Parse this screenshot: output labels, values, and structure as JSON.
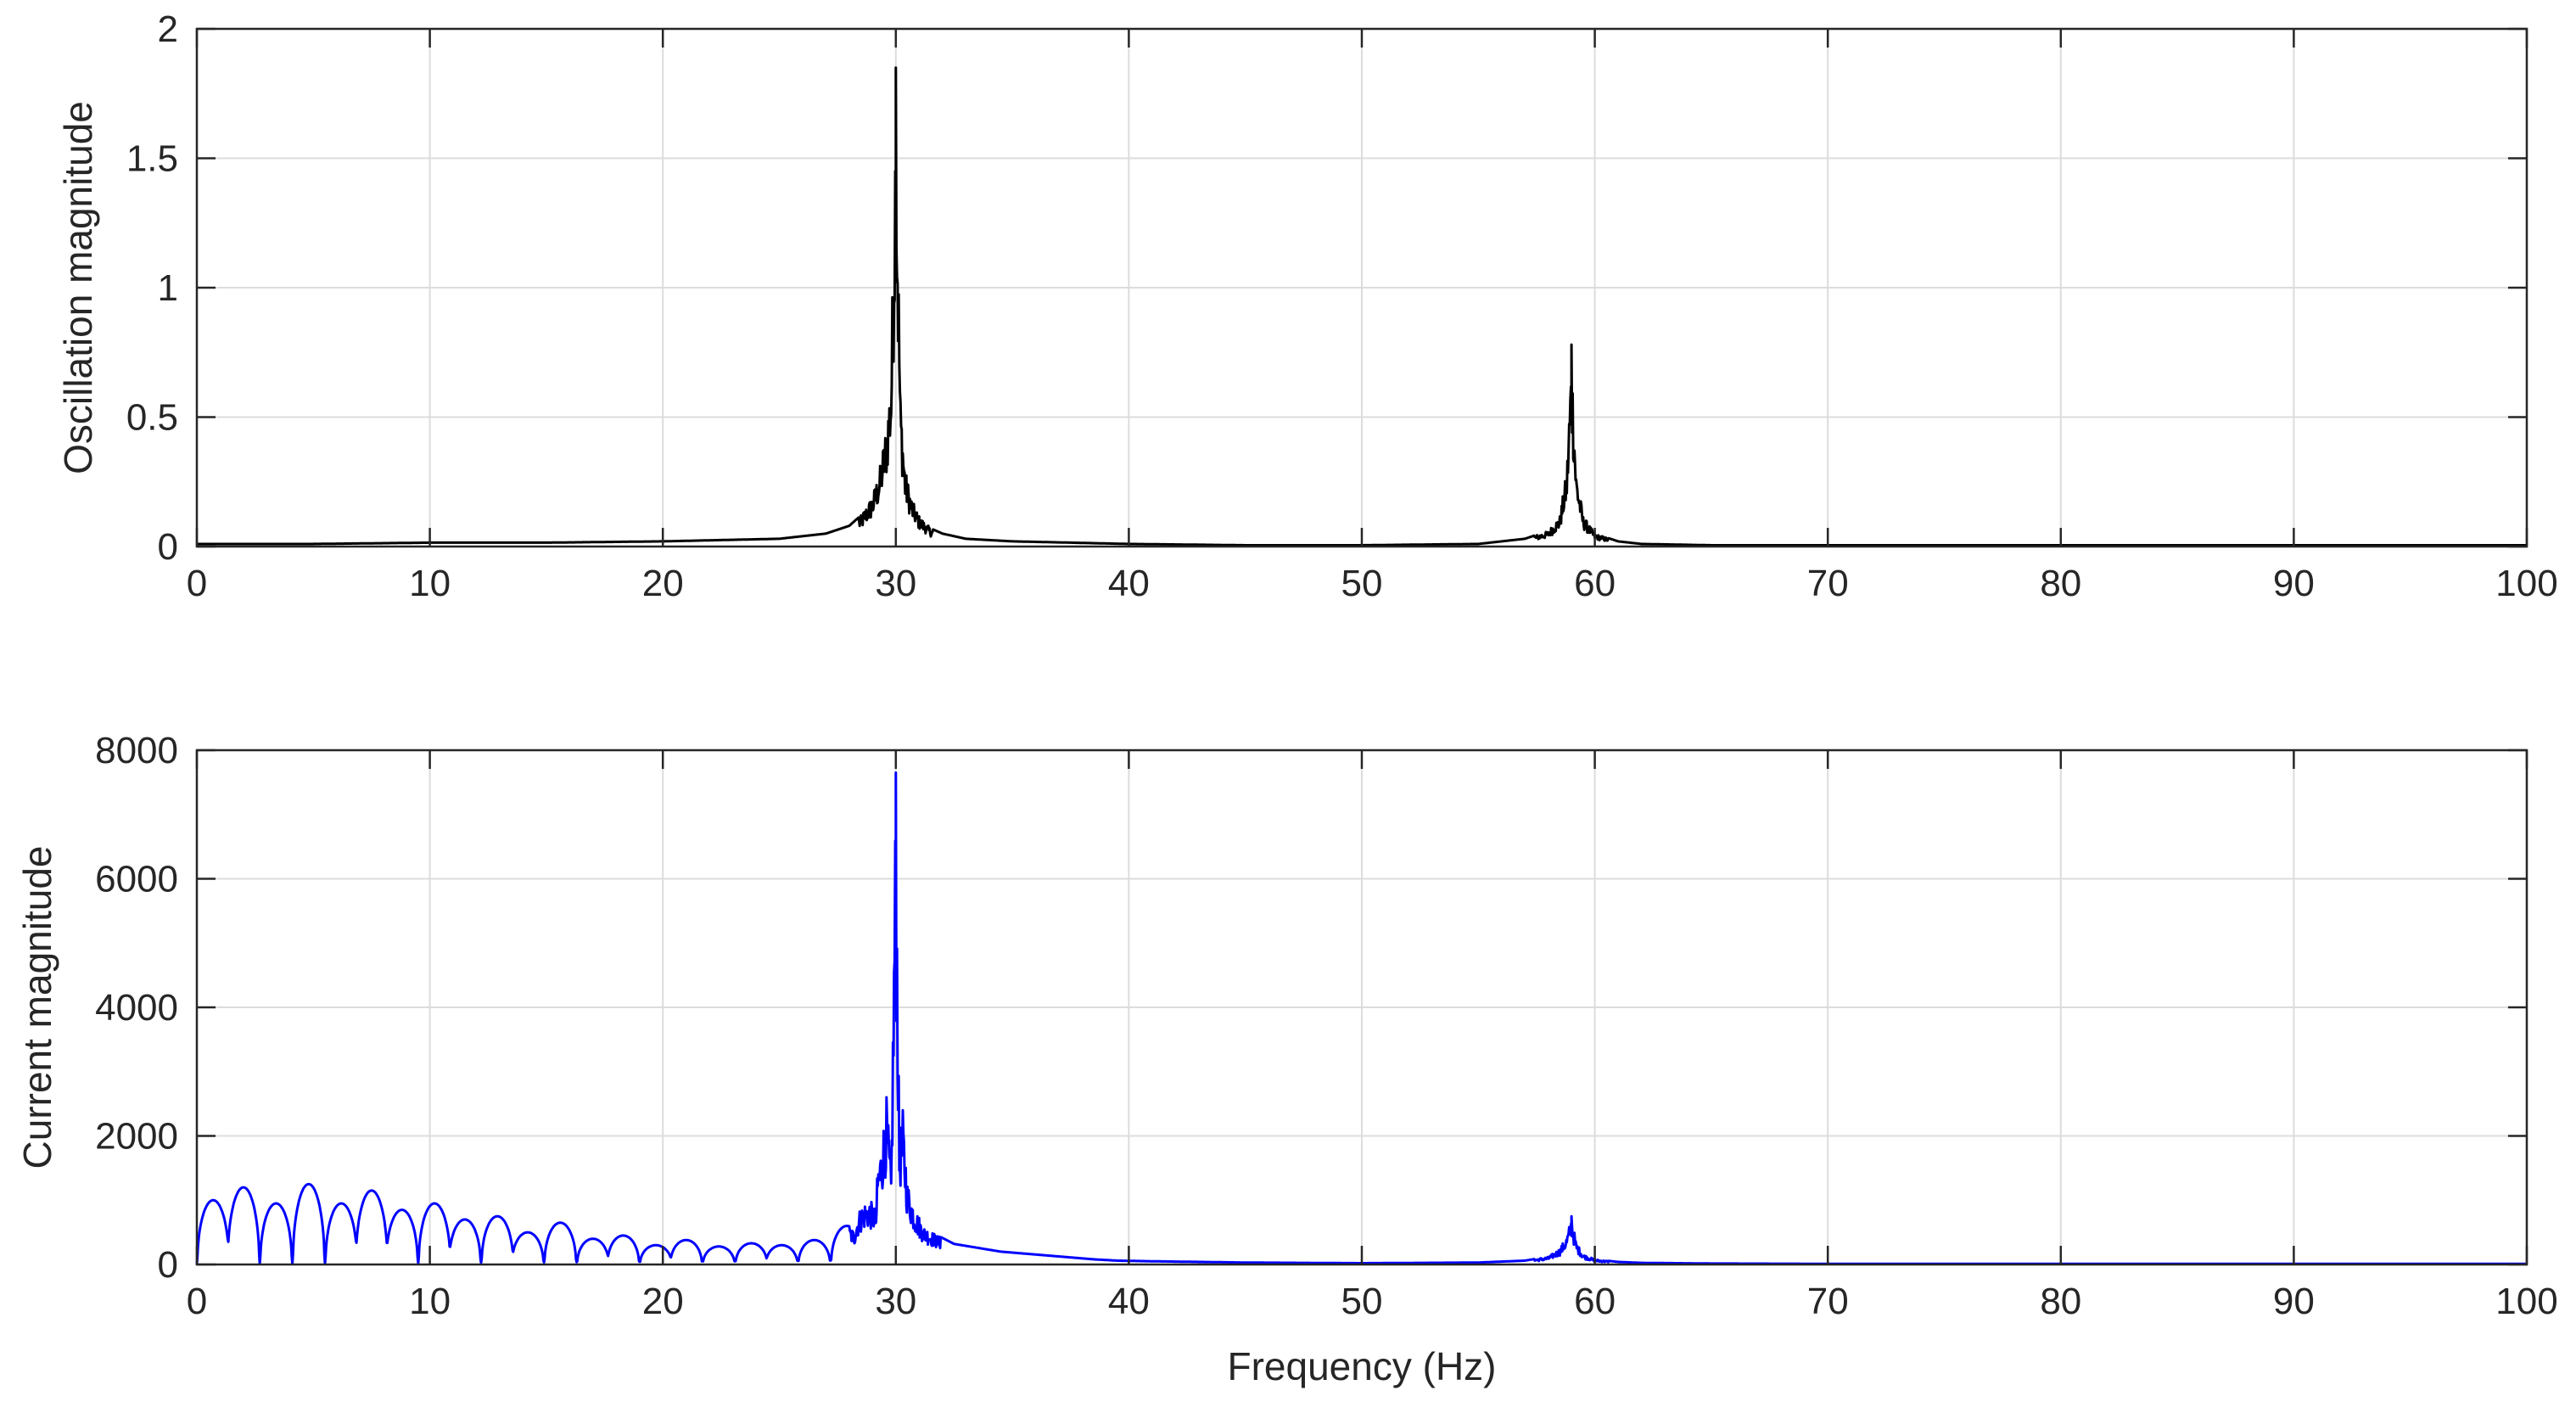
{
  "chart_data": [
    {
      "type": "line",
      "title": "",
      "xlabel": "",
      "ylabel": "Oscillation magnitude",
      "xlim": [
        0,
        100
      ],
      "ylim": [
        0,
        2
      ],
      "xticks": [
        "0",
        "10",
        "20",
        "30",
        "40",
        "50",
        "60",
        "70",
        "80",
        "90",
        "100"
      ],
      "yticks": [
        "0",
        "0.5",
        "1",
        "1.5",
        "2"
      ],
      "grid": true,
      "series": [
        {
          "color": "#000000",
          "peaks": [
            {
              "x": 30.0,
              "y": 1.85
            },
            {
              "x": 59.0,
              "y": 0.78
            }
          ],
          "x": [
            0,
            5,
            10,
            15,
            20,
            25,
            27,
            28,
            28.5,
            29,
            29.3,
            29.6,
            29.8,
            30.0,
            30.2,
            30.4,
            30.7,
            31,
            31.5,
            32,
            33,
            35,
            40,
            45,
            50,
            55,
            57,
            58,
            58.5,
            58.8,
            59.0,
            59.2,
            59.5,
            60,
            61,
            62,
            65,
            70,
            80,
            90,
            100
          ],
          "y": [
            0.01,
            0.01,
            0.015,
            0.015,
            0.02,
            0.03,
            0.05,
            0.08,
            0.12,
            0.2,
            0.3,
            0.48,
            0.7,
            1.85,
            0.6,
            0.3,
            0.18,
            0.12,
            0.07,
            0.05,
            0.03,
            0.02,
            0.01,
            0.005,
            0.005,
            0.01,
            0.03,
            0.06,
            0.12,
            0.3,
            0.78,
            0.3,
            0.12,
            0.05,
            0.02,
            0.01,
            0.005,
            0.005,
            0.005,
            0.005,
            0.005
          ]
        }
      ]
    },
    {
      "type": "line",
      "title": "",
      "xlabel": "Frequency (Hz)",
      "ylabel": "Current magnitude",
      "xlim": [
        0,
        100
      ],
      "ylim": [
        0,
        8000
      ],
      "xticks": [
        "0",
        "10",
        "20",
        "30",
        "40",
        "50",
        "60",
        "70",
        "80",
        "90",
        "100"
      ],
      "yticks": [
        "0",
        "2000",
        "4000",
        "6000",
        "8000"
      ],
      "grid": true,
      "series": [
        {
          "color": "#0000ff",
          "lobe_tops": [
            {
              "x": 0.7,
              "y": 1000
            },
            {
              "x": 2.0,
              "y": 1200
            },
            {
              "x": 3.4,
              "y": 950
            },
            {
              "x": 4.8,
              "y": 1250
            },
            {
              "x": 6.2,
              "y": 950
            },
            {
              "x": 7.5,
              "y": 1150
            },
            {
              "x": 8.8,
              "y": 850
            },
            {
              "x": 10.2,
              "y": 950
            },
            {
              "x": 11.5,
              "y": 700
            },
            {
              "x": 12.9,
              "y": 750
            },
            {
              "x": 14.2,
              "y": 500
            },
            {
              "x": 15.6,
              "y": 650
            },
            {
              "x": 17.0,
              "y": 400
            },
            {
              "x": 18.3,
              "y": 450
            },
            {
              "x": 19.7,
              "y": 300
            },
            {
              "x": 21.0,
              "y": 380
            },
            {
              "x": 22.4,
              "y": 280
            },
            {
              "x": 23.8,
              "y": 330
            },
            {
              "x": 25.1,
              "y": 300
            },
            {
              "x": 26.5,
              "y": 380
            },
            {
              "x": 27.9,
              "y": 600
            },
            {
              "x": 28.8,
              "y": 1000
            }
          ],
          "peaks": [
            {
              "x": 29.6,
              "y": 2600
            },
            {
              "x": 30.0,
              "y": 7650
            },
            {
              "x": 30.3,
              "y": 2400
            },
            {
              "x": 59.0,
              "y": 750
            }
          ],
          "x": [
            0,
            29.0,
            29.3,
            29.6,
            29.8,
            30.0,
            30.15,
            30.3,
            30.5,
            30.8,
            31.2,
            31.8,
            32.5,
            33.5,
            34.5,
            35.5,
            36.5,
            37.5,
            38.5,
            39.5,
            41,
            43,
            45,
            50,
            55,
            57,
            58,
            58.5,
            58.8,
            59.0,
            59.2,
            59.5,
            60,
            61,
            62,
            65,
            70,
            80,
            90,
            100
          ],
          "y": [
            0,
            1300,
            1700,
            2600,
            1500,
            7650,
            2000,
            2400,
            1300,
            900,
            600,
            450,
            320,
            260,
            200,
            170,
            140,
            110,
            80,
            60,
            50,
            40,
            30,
            20,
            30,
            60,
            120,
            250,
            450,
            750,
            350,
            160,
            80,
            40,
            25,
            15,
            10,
            10,
            10,
            10
          ]
        }
      ]
    }
  ]
}
